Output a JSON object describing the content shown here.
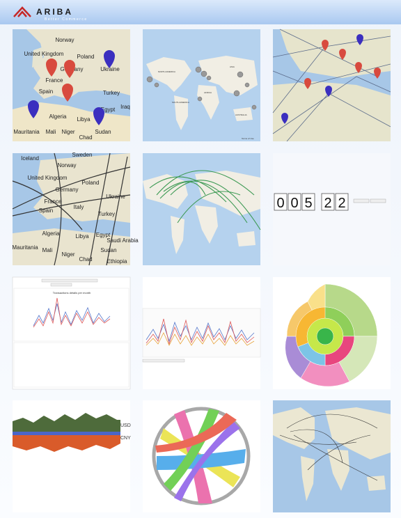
{
  "header": {
    "logo": "ARIBA",
    "tagline": "Better Commerce"
  },
  "tiles": [
    {
      "labels": [
        "Norway",
        "United Kingdom",
        "Poland",
        "Ukraine",
        "Germany",
        "France",
        "Spain",
        "Turkey",
        "Iraq",
        "Algeria",
        "Libya",
        "Egypt",
        "Mauritania",
        "Mali",
        "Niger",
        "Chad",
        "Sudan"
      ]
    },
    {
      "labels": [
        "NORTH AMERICA",
        "ASIA",
        "AFRICA",
        "SOUTH AMERICA",
        "AUSTRALIA",
        "Terms of Use"
      ]
    },
    {
      "labels": []
    },
    {
      "labels": [
        "Iceland",
        "Sweden",
        "Norway",
        "United Kingdom",
        "Germany",
        "Poland",
        "France",
        "Ukraine",
        "Spain",
        "Italy",
        "Turkey",
        "Algeria",
        "Libya",
        "Egypt",
        "Saudi Arabia",
        "Mauritania",
        "Mali",
        "Niger",
        "Chad",
        "Sudan",
        "Ethiopia"
      ]
    },
    {
      "labels": []
    },
    {
      "digits": [
        "0",
        "0",
        "5",
        "2",
        "2"
      ]
    },
    {
      "labels": [
        "Transactions details per month"
      ]
    },
    {
      "labels": []
    },
    {
      "labels": []
    },
    {
      "labels": [
        "USD",
        "CNY"
      ]
    },
    {
      "labels": []
    },
    {
      "labels": []
    }
  ]
}
